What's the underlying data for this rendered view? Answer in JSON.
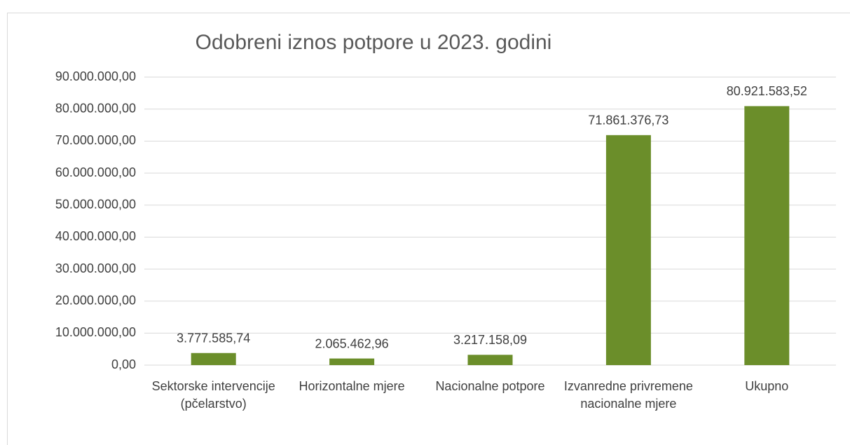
{
  "chart_data": {
    "type": "bar",
    "title": "Odobreni iznos potpore u 2023. godini",
    "categories": [
      "Sektorske intervencije (pčelarstvo)",
      "Horizontalne mjere",
      "Nacionalne potpore",
      "Izvanredne privremene nacionalne mjere",
      "Ukupno"
    ],
    "values": [
      3777585.74,
      2065462.96,
      3217158.09,
      71861376.73,
      80921583.52
    ],
    "value_labels": [
      "3.777.585,74",
      "2.065.462,96",
      "3.217.158,09",
      "71.861.376,73",
      "80.921.583,52"
    ],
    "color": "#6b8e2a",
    "ylim": [
      0,
      90000000
    ],
    "yticks": [
      {
        "value": 0,
        "label": "0,00"
      },
      {
        "value": 10000000,
        "label": "10.000.000,00"
      },
      {
        "value": 20000000,
        "label": "20.000.000,00"
      },
      {
        "value": 30000000,
        "label": "30.000.000,00"
      },
      {
        "value": 40000000,
        "label": "40.000.000,00"
      },
      {
        "value": 50000000,
        "label": "50.000.000,00"
      },
      {
        "value": 60000000,
        "label": "60.000.000,00"
      },
      {
        "value": 70000000,
        "label": "70.000.000,00"
      },
      {
        "value": 80000000,
        "label": "80.000.000,00"
      },
      {
        "value": 90000000,
        "label": "90.000.000,00"
      }
    ],
    "grid": true
  }
}
